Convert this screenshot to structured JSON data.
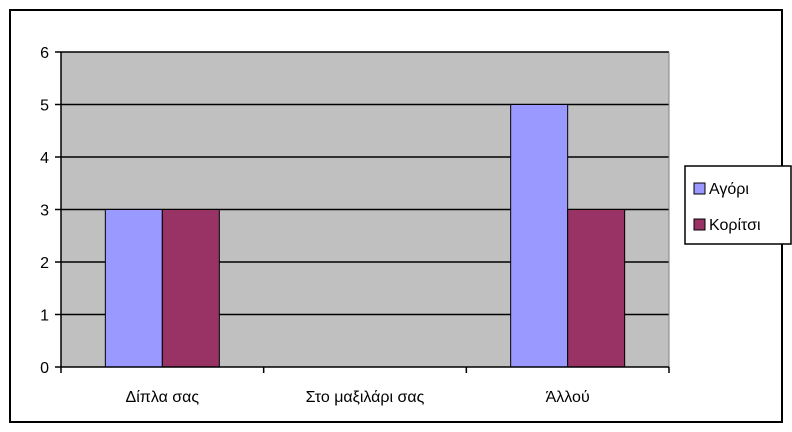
{
  "chart_data": {
    "type": "bar",
    "categories": [
      "Δίπλα σας",
      "Στο μαξιλάρι σας",
      "Άλλού"
    ],
    "series": [
      {
        "name": "Αγόρι",
        "values": [
          3,
          0,
          5
        ]
      },
      {
        "name": "Κορίτσι",
        "values": [
          3,
          0,
          3
        ]
      }
    ],
    "ylim": [
      0,
      6
    ],
    "yticks": [
      "0",
      "1",
      "2",
      "3",
      "4",
      "5",
      "6"
    ],
    "grid": true,
    "legend_position": "right",
    "colors": {
      "plot_background": "#c0c0c0",
      "series": [
        "#9999ff",
        "#993366"
      ]
    }
  }
}
